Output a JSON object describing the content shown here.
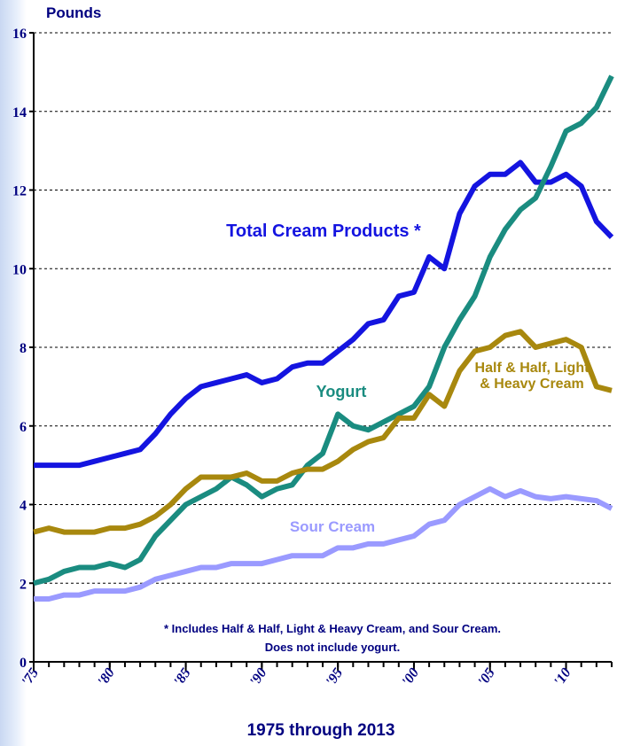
{
  "chart_data": {
    "type": "line",
    "y_axis_label": "Pounds",
    "x_axis_label": "1975 through 2013",
    "footnote": [
      "* Includes Half & Half, Light & Heavy Cream, and Sour Cream.",
      "Does not include yogurt."
    ],
    "x": [
      1975,
      1976,
      1977,
      1978,
      1979,
      1980,
      1981,
      1982,
      1983,
      1984,
      1985,
      1986,
      1987,
      1988,
      1989,
      1990,
      1991,
      1992,
      1993,
      1994,
      1995,
      1996,
      1997,
      1998,
      1999,
      2000,
      2001,
      2002,
      2003,
      2004,
      2005,
      2006,
      2007,
      2008,
      2009,
      2010,
      2011,
      2012,
      2013
    ],
    "xlim": [
      1975,
      2013
    ],
    "xticks": [
      {
        "value": 1975,
        "label": "'75"
      },
      {
        "value": 1980,
        "label": "'80"
      },
      {
        "value": 1985,
        "label": "'85"
      },
      {
        "value": 1990,
        "label": "'90"
      },
      {
        "value": 1995,
        "label": "'95"
      },
      {
        "value": 2000,
        "label": "'00"
      },
      {
        "value": 2005,
        "label": "'05"
      },
      {
        "value": 2010,
        "label": "'10"
      }
    ],
    "ylim": [
      0,
      16
    ],
    "yticks": [
      0,
      2,
      4,
      6,
      8,
      10,
      12,
      14,
      16
    ],
    "grid": true,
    "series": [
      {
        "name": "Total Cream Products *",
        "color": "#1414e0",
        "values": [
          5.0,
          5.0,
          5.0,
          5.0,
          5.1,
          5.2,
          5.3,
          5.4,
          5.8,
          6.3,
          6.7,
          7.0,
          7.1,
          7.2,
          7.3,
          7.1,
          7.2,
          7.5,
          7.6,
          7.6,
          7.9,
          8.2,
          8.6,
          8.7,
          9.3,
          9.4,
          10.3,
          10.0,
          11.4,
          12.1,
          12.4,
          12.4,
          12.7,
          12.2,
          12.2,
          12.4,
          12.1,
          11.2,
          10.8
        ]
      },
      {
        "name": "Yogurt",
        "color": "#1a8c80",
        "values": [
          2.0,
          2.1,
          2.3,
          2.4,
          2.4,
          2.5,
          2.4,
          2.6,
          3.2,
          3.6,
          4.0,
          4.2,
          4.4,
          4.7,
          4.5,
          4.2,
          4.4,
          4.5,
          5.0,
          5.3,
          6.3,
          6.0,
          5.9,
          6.1,
          6.3,
          6.5,
          7.0,
          8.0,
          8.7,
          9.3,
          10.3,
          11.0,
          11.5,
          11.8,
          12.6,
          13.5,
          13.7,
          14.1,
          14.9
        ]
      },
      {
        "name": "Half & Half, Light & Heavy Cream",
        "color": "#a8880e",
        "values": [
          3.3,
          3.4,
          3.3,
          3.3,
          3.3,
          3.4,
          3.4,
          3.5,
          3.7,
          4.0,
          4.4,
          4.7,
          4.7,
          4.7,
          4.8,
          4.6,
          4.6,
          4.8,
          4.9,
          4.9,
          5.1,
          5.4,
          5.6,
          5.7,
          6.2,
          6.2,
          6.8,
          6.5,
          7.4,
          7.9,
          8.0,
          8.3,
          8.4,
          8.0,
          8.1,
          8.2,
          8.0,
          7.0,
          6.9
        ]
      },
      {
        "name": "Sour Cream",
        "color": "#9a9aff",
        "values": [
          1.6,
          1.6,
          1.7,
          1.7,
          1.8,
          1.8,
          1.8,
          1.9,
          2.1,
          2.2,
          2.3,
          2.4,
          2.4,
          2.5,
          2.5,
          2.5,
          2.6,
          2.7,
          2.7,
          2.7,
          2.9,
          2.9,
          3.0,
          3.0,
          3.1,
          3.2,
          3.5,
          3.6,
          4.0,
          4.2,
          4.4,
          4.2,
          4.35,
          4.2,
          4.15,
          4.2,
          4.15,
          4.1,
          3.9
        ]
      }
    ]
  }
}
